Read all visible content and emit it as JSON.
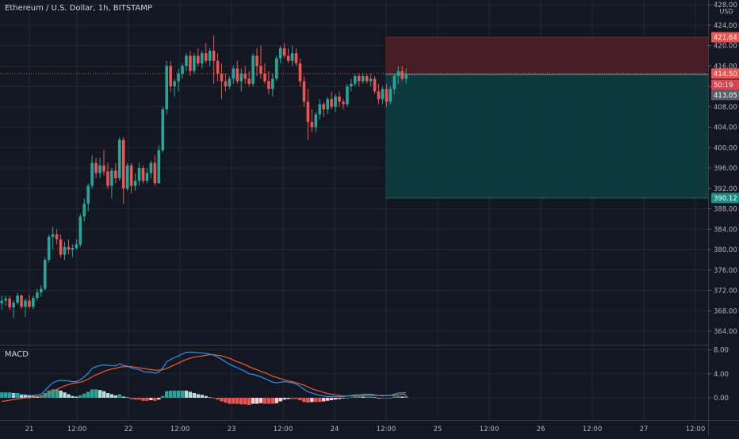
{
  "symbol": {
    "title": "Ethereum / U.S. Dollar, 1h, BITSTAMP",
    "currency": "USD"
  },
  "colors": {
    "background": "#131722",
    "grid": "#242833",
    "axis_text": "#b2b5be",
    "up": "#26a69a",
    "down": "#ef5350",
    "macd_line": "#2196f3",
    "signal_line": "#ff5722",
    "stop_zone": "#4a1d25",
    "target_zone": "#0e3b3e",
    "target_label": "#1b8c86",
    "countdown_label": "#e04050",
    "current_label": "#5a5e66"
  },
  "main_axis": {
    "ticks": [
      "428.00",
      "424.00",
      "420.00",
      "416.00",
      "412.00",
      "408.00",
      "404.00",
      "400.00",
      "396.00",
      "392.00",
      "388.00",
      "384.00",
      "380.00",
      "376.00",
      "372.00",
      "368.00",
      "364.00"
    ]
  },
  "price_labels": {
    "stop": "421.64",
    "last": "414.50",
    "countdown": "50:19",
    "current": "413.05",
    "target": "390.12"
  },
  "macd": {
    "title": "MACD",
    "ticks": [
      "8.00",
      "4.00",
      "0.00"
    ]
  },
  "time_axis": {
    "labels": [
      "21",
      "12:00",
      "22",
      "12:00",
      "23",
      "12:00",
      "24",
      "12:00",
      "25",
      "12:00",
      "26",
      "12:00",
      "27",
      "12:00"
    ]
  },
  "chart_data": {
    "type": "candlestick",
    "title": "Ethereum / U.S. Dollar, 1h, BITSTAMP",
    "timeframe": "1h",
    "ylim": [
      362,
      430
    ],
    "series": [
      {
        "name": "ETH/USD",
        "candles": [
          [
            369.5,
            371.0,
            368.2,
            370.0
          ],
          [
            370.0,
            371.0,
            369.0,
            370.4
          ],
          [
            370.4,
            371.0,
            368.2,
            368.7
          ],
          [
            368.7,
            370.0,
            366.5,
            369.6
          ],
          [
            369.6,
            371.5,
            369.2,
            371.0
          ],
          [
            371.0,
            371.2,
            368.3,
            368.8
          ],
          [
            368.8,
            370.4,
            366.8,
            370.0
          ],
          [
            370.0,
            371.2,
            368.4,
            368.8
          ],
          [
            368.8,
            371.0,
            368.3,
            370.5
          ],
          [
            370.5,
            372.3,
            370.0,
            371.6
          ],
          [
            371.6,
            373.0,
            370.8,
            372.3
          ],
          [
            372.3,
            378.5,
            372.0,
            378.0
          ],
          [
            378.0,
            383.0,
            377.5,
            382.5
          ],
          [
            382.5,
            384.5,
            380.0,
            383.0
          ],
          [
            383.0,
            384.0,
            381.0,
            382.0
          ],
          [
            382.0,
            383.0,
            378.5,
            379.0
          ],
          [
            379.0,
            381.5,
            378.0,
            380.5
          ],
          [
            380.5,
            382.0,
            379.0,
            380.0
          ],
          [
            380.0,
            381.0,
            378.5,
            380.3
          ],
          [
            380.3,
            382.0,
            380.0,
            381.0
          ],
          [
            381.0,
            387.0,
            380.5,
            386.5
          ],
          [
            386.5,
            390.0,
            385.5,
            389.0
          ],
          [
            389.0,
            393.0,
            387.5,
            392.5
          ],
          [
            392.5,
            398.5,
            392.0,
            397.0
          ],
          [
            397.0,
            398.0,
            394.0,
            395.0
          ],
          [
            395.0,
            398.0,
            394.0,
            396.5
          ],
          [
            396.5,
            399.5,
            394.5,
            395.3
          ],
          [
            395.3,
            397.0,
            392.0,
            392.5
          ],
          [
            392.5,
            396.0,
            390.0,
            395.5
          ],
          [
            395.5,
            397.0,
            393.0,
            394.0
          ],
          [
            394.0,
            402.0,
            393.5,
            401.5
          ],
          [
            401.5,
            402.0,
            389.0,
            392.0
          ],
          [
            392.0,
            397.0,
            391.5,
            396.5
          ],
          [
            396.5,
            397.0,
            391.0,
            392.5
          ],
          [
            392.5,
            395.0,
            391.5,
            393.5
          ],
          [
            393.5,
            397.0,
            392.5,
            396.0
          ],
          [
            396.0,
            396.5,
            393.0,
            393.5
          ],
          [
            393.5,
            396.0,
            393.0,
            395.0
          ],
          [
            395.0,
            397.5,
            394.0,
            397.0
          ],
          [
            397.0,
            398.5,
            392.5,
            393.0
          ],
          [
            393.0,
            400.5,
            393.0,
            399.5
          ],
          [
            399.5,
            408.0,
            399.0,
            407.5
          ],
          [
            407.5,
            417.0,
            406.5,
            416.0
          ],
          [
            416.0,
            417.0,
            411.0,
            412.0
          ],
          [
            412.0,
            413.5,
            410.0,
            413.0
          ],
          [
            413.0,
            415.5,
            411.0,
            414.5
          ],
          [
            414.5,
            416.5,
            413.5,
            416.0
          ],
          [
            416.0,
            418.5,
            415.0,
            418.0
          ],
          [
            418.0,
            419.0,
            414.0,
            415.0
          ],
          [
            415.0,
            418.5,
            414.5,
            418.0
          ],
          [
            418.0,
            419.5,
            416.0,
            416.5
          ],
          [
            416.5,
            419.0,
            415.5,
            418.5
          ],
          [
            418.5,
            420.5,
            416.5,
            417.0
          ],
          [
            417.0,
            419.5,
            416.0,
            419.0
          ],
          [
            419.0,
            422.0,
            412.5,
            417.0
          ],
          [
            417.0,
            418.5,
            413.0,
            414.5
          ],
          [
            414.5,
            416.5,
            409.5,
            413.0
          ],
          [
            413.0,
            414.5,
            411.0,
            412.0
          ],
          [
            412.0,
            414.0,
            411.5,
            413.5
          ],
          [
            413.5,
            416.0,
            412.5,
            415.5
          ],
          [
            415.5,
            417.0,
            412.5,
            413.0
          ],
          [
            413.0,
            415.5,
            411.0,
            414.5
          ],
          [
            414.5,
            416.0,
            412.5,
            413.5
          ],
          [
            413.5,
            415.0,
            412.0,
            412.5
          ],
          [
            412.5,
            418.5,
            412.0,
            418.0
          ],
          [
            418.0,
            419.5,
            414.0,
            416.0
          ],
          [
            416.0,
            420.0,
            413.5,
            414.5
          ],
          [
            414.5,
            416.5,
            412.5,
            413.0
          ],
          [
            413.0,
            415.0,
            410.5,
            411.5
          ],
          [
            411.5,
            414.5,
            410.0,
            413.5
          ],
          [
            413.5,
            418.0,
            413.0,
            417.5
          ],
          [
            417.5,
            420.0,
            416.5,
            419.5
          ],
          [
            419.5,
            420.5,
            417.5,
            418.0
          ],
          [
            418.0,
            419.5,
            416.5,
            417.0
          ],
          [
            417.0,
            420.0,
            416.0,
            418.5
          ],
          [
            418.5,
            419.5,
            416.0,
            416.5
          ],
          [
            416.5,
            417.5,
            412.0,
            413.0
          ],
          [
            413.0,
            414.0,
            408.0,
            409.0
          ],
          [
            409.0,
            411.5,
            401.5,
            405.0
          ],
          [
            405.0,
            407.5,
            403.0,
            404.0
          ],
          [
            404.0,
            407.0,
            403.0,
            406.5
          ],
          [
            406.5,
            409.5,
            405.5,
            408.5
          ],
          [
            408.5,
            409.0,
            406.0,
            407.5
          ],
          [
            407.5,
            410.0,
            406.5,
            409.5
          ],
          [
            409.5,
            411.0,
            407.5,
            408.0
          ],
          [
            408.0,
            410.5,
            407.0,
            410.0
          ],
          [
            410.0,
            411.0,
            408.0,
            409.0
          ],
          [
            409.0,
            409.5,
            407.5,
            408.5
          ],
          [
            408.5,
            412.5,
            408.0,
            412.0
          ],
          [
            412.0,
            413.5,
            411.0,
            412.5
          ],
          [
            412.5,
            414.5,
            412.0,
            414.0
          ],
          [
            414.0,
            414.5,
            412.0,
            413.0
          ],
          [
            413.0,
            414.5,
            412.5,
            414.0
          ],
          [
            414.0,
            414.5,
            412.5,
            413.0
          ],
          [
            413.0,
            414.5,
            412.0,
            413.5
          ],
          [
            413.5,
            414.0,
            410.5,
            411.0
          ],
          [
            411.0,
            412.5,
            408.5,
            409.5
          ],
          [
            409.5,
            412.0,
            408.5,
            411.5
          ],
          [
            411.5,
            412.5,
            408.0,
            409.0
          ],
          [
            409.0,
            412.0,
            408.5,
            411.5
          ],
          [
            411.5,
            414.5,
            410.5,
            414.0
          ],
          [
            414.0,
            416.0,
            412.5,
            415.0
          ],
          [
            415.0,
            416.0,
            413.0,
            413.5
          ],
          [
            413.5,
            415.5,
            412.5,
            414.5
          ]
        ]
      },
      {
        "name": "MACD",
        "values": [
          0.3,
          0.4,
          0.5,
          0.5,
          0.6,
          0.5,
          0.5,
          0.4,
          0.4,
          0.5,
          0.6,
          1.2,
          1.9,
          2.5,
          2.8,
          2.9,
          2.9,
          2.8,
          2.7,
          2.7,
          3.0,
          3.5,
          4.1,
          4.9,
          5.2,
          5.4,
          5.5,
          5.4,
          5.4,
          5.3,
          5.7,
          5.4,
          5.3,
          5.0,
          4.8,
          4.7,
          4.4,
          4.3,
          4.3,
          4.1,
          4.3,
          5.0,
          6.0,
          6.4,
          6.7,
          7.0,
          7.3,
          7.6,
          7.6,
          7.6,
          7.5,
          7.5,
          7.4,
          7.3,
          7.1,
          6.8,
          6.4,
          6.0,
          5.6,
          5.3,
          5.0,
          4.7,
          4.4,
          4.0,
          3.9,
          3.7,
          3.5,
          3.2,
          2.9,
          2.6,
          2.5,
          2.6,
          2.7,
          2.6,
          2.5,
          2.3,
          1.9,
          1.4,
          1.0,
          0.8,
          0.6,
          0.4,
          0.3,
          0.2,
          0.2,
          0.2,
          0.2,
          0.2,
          0.3,
          0.4,
          0.5,
          0.5,
          0.6,
          0.6,
          0.6,
          0.5,
          0.4,
          0.3,
          0.4,
          0.4,
          0.6,
          0.8,
          0.8,
          0.9
        ]
      },
      {
        "name": "Signal",
        "values": [
          -0.6,
          -0.5,
          -0.4,
          -0.3,
          -0.2,
          -0.1,
          0.0,
          0.0,
          0.1,
          0.2,
          0.2,
          0.4,
          0.7,
          1.1,
          1.4,
          1.7,
          2.0,
          2.2,
          2.4,
          2.5,
          2.6,
          2.8,
          3.1,
          3.5,
          3.8,
          4.1,
          4.4,
          4.6,
          4.8,
          4.9,
          5.1,
          5.2,
          5.2,
          5.2,
          5.1,
          5.0,
          4.9,
          4.8,
          4.7,
          4.6,
          4.6,
          4.7,
          4.9,
          5.2,
          5.5,
          5.8,
          6.1,
          6.4,
          6.6,
          6.8,
          6.9,
          7.0,
          7.1,
          7.2,
          7.2,
          7.1,
          7.0,
          6.8,
          6.6,
          6.3,
          6.0,
          5.8,
          5.5,
          5.2,
          4.9,
          4.7,
          4.4,
          4.2,
          3.9,
          3.6,
          3.4,
          3.2,
          3.0,
          2.8,
          2.7,
          2.5,
          2.3,
          2.1,
          1.8,
          1.5,
          1.3,
          1.1,
          0.9,
          0.7,
          0.6,
          0.5,
          0.4,
          0.3,
          0.3,
          0.3,
          0.3,
          0.3,
          0.4,
          0.4,
          0.4,
          0.4,
          0.4,
          0.4,
          0.4,
          0.4,
          0.4,
          0.5,
          0.6,
          0.6
        ]
      }
    ],
    "position": {
      "entry": 414.5,
      "stop": 421.64,
      "target": 390.12
    }
  }
}
